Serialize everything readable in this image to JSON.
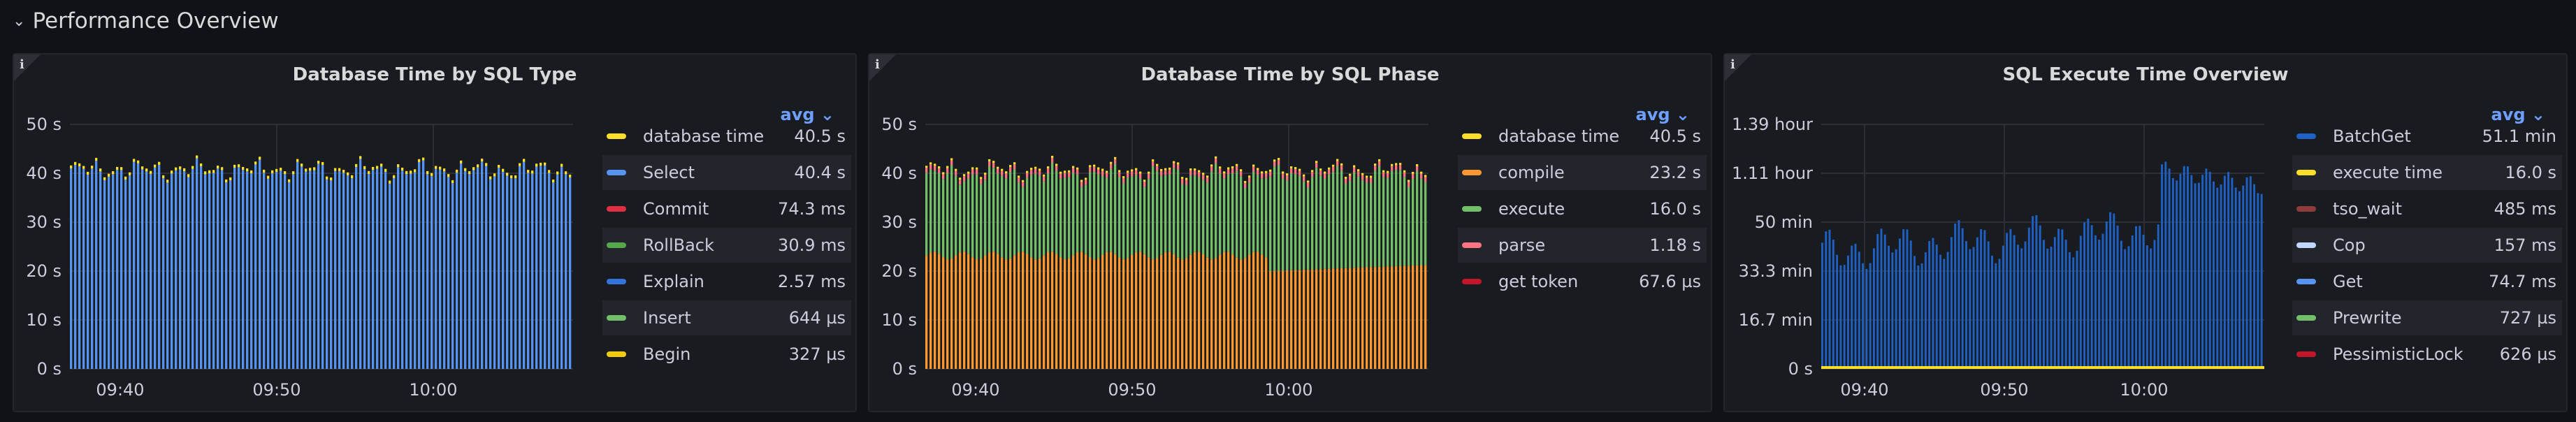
{
  "section": {
    "title": "Performance Overview"
  },
  "panels": [
    {
      "title": "Database Time by SQL Type",
      "info_label": "i",
      "legend_calc": "avg",
      "y_ticks": [
        "50 s",
        "40 s",
        "30 s",
        "20 s",
        "10 s",
        "0 s"
      ],
      "x_ticks": [
        "09:40",
        "09:50",
        "10:00"
      ],
      "legend": [
        {
          "name": "database time",
          "value": "40.5 s",
          "color": "#fade2a"
        },
        {
          "name": "Select",
          "value": "40.4 s",
          "color": "#5794f2"
        },
        {
          "name": "Commit",
          "value": "74.3 ms",
          "color": "#e02f44"
        },
        {
          "name": "RollBack",
          "value": "30.9 ms",
          "color": "#56a64b"
        },
        {
          "name": "Explain",
          "value": "2.57 ms",
          "color": "#3274d9"
        },
        {
          "name": "Insert",
          "value": "644 µs",
          "color": "#73bf69"
        },
        {
          "name": "Begin",
          "value": "327 µs",
          "color": "#f2cc0c"
        }
      ]
    },
    {
      "title": "Database Time by SQL Phase",
      "info_label": "i",
      "legend_calc": "avg",
      "y_ticks": [
        "50 s",
        "40 s",
        "30 s",
        "20 s",
        "10 s",
        "0 s"
      ],
      "x_ticks": [
        "09:40",
        "09:50",
        "10:00"
      ],
      "legend": [
        {
          "name": "database time",
          "value": "40.5 s",
          "color": "#fade2a"
        },
        {
          "name": "compile",
          "value": "23.2 s",
          "color": "#ff9830"
        },
        {
          "name": "execute",
          "value": "16.0 s",
          "color": "#73bf69"
        },
        {
          "name": "parse",
          "value": "1.18 s",
          "color": "#ff7383"
        },
        {
          "name": "get token",
          "value": "67.6 µs",
          "color": "#c4162a"
        }
      ]
    },
    {
      "title": "SQL Execute Time Overview",
      "info_label": "i",
      "legend_calc": "avg",
      "y_ticks": [
        "1.39 hour",
        "1.11 hour",
        "50 min",
        "33.3 min",
        "16.7 min",
        "0 s"
      ],
      "x_ticks": [
        "09:40",
        "09:50",
        "10:00"
      ],
      "legend": [
        {
          "name": "BatchGet",
          "value": "51.1 min",
          "color": "#1f60c4"
        },
        {
          "name": "execute time",
          "value": "16.0 s",
          "color": "#fade2a"
        },
        {
          "name": "tso_wait",
          "value": "485 ms",
          "color": "#8f3b3b"
        },
        {
          "name": "Cop",
          "value": "157 ms",
          "color": "#c0d8ff"
        },
        {
          "name": "Get",
          "value": "74.7 ms",
          "color": "#5794f2"
        },
        {
          "name": "Prewrite",
          "value": "727 µs",
          "color": "#73bf69"
        },
        {
          "name": "PessimisticLock",
          "value": "626 µs",
          "color": "#c4162a"
        }
      ]
    }
  ],
  "chart_data": [
    {
      "type": "bar",
      "title": "Database Time by SQL Type",
      "x_ticks": [
        "09:40",
        "09:50",
        "10:00"
      ],
      "ylim": [
        0,
        50
      ],
      "y_unit": "s",
      "series": [
        {
          "name": "database time",
          "avg": 40.5,
          "color": "#fade2a"
        },
        {
          "name": "Select",
          "avg": 40.4,
          "color": "#5794f2"
        }
      ]
    },
    {
      "type": "bar",
      "title": "Database Time by SQL Phase",
      "x_ticks": [
        "09:40",
        "09:50",
        "10:00"
      ],
      "ylim": [
        0,
        50
      ],
      "y_unit": "s",
      "series": [
        {
          "name": "database time",
          "avg": 40.5,
          "color": "#fade2a"
        },
        {
          "name": "compile",
          "avg": 23.2,
          "color": "#ff9830"
        },
        {
          "name": "execute",
          "avg": 16.0,
          "color": "#73bf69"
        },
        {
          "name": "parse",
          "avg": 1.18,
          "color": "#ff7383"
        }
      ]
    },
    {
      "type": "bar",
      "title": "SQL Execute Time Overview",
      "x_ticks": [
        "09:40",
        "09:50",
        "10:00"
      ],
      "ylim": [
        0,
        83.3
      ],
      "y_unit": "min",
      "series": [
        {
          "name": "BatchGet",
          "avg": 51.1,
          "color": "#1f60c4"
        },
        {
          "name": "execute time",
          "avg": 0.27,
          "color": "#fade2a"
        }
      ]
    }
  ]
}
